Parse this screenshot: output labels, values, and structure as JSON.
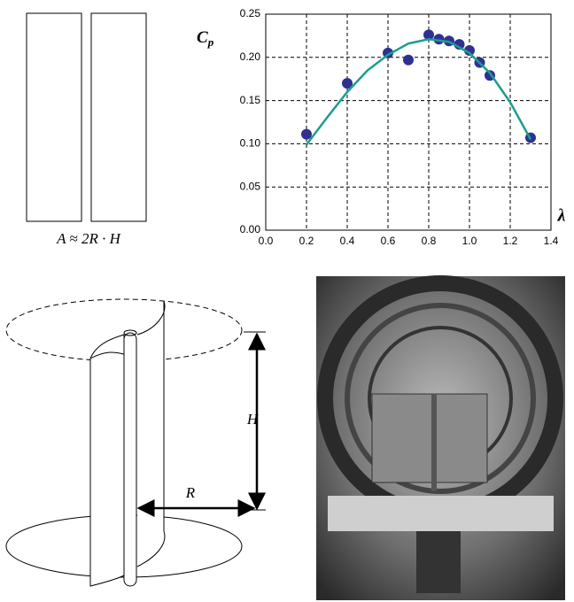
{
  "chart_data": {
    "type": "scatter",
    "y_label": "C",
    "y_label_sub": "p",
    "x_label": "λ",
    "xlim": [
      0,
      1.4
    ],
    "xticks": [
      {
        "value": 0,
        "label": "0.0"
      },
      0.2,
      0.4,
      0.6,
      0.8,
      {
        "value": 1,
        "label": "1.0"
      },
      1.2,
      1.4
    ],
    "ylim": [
      0,
      0.25
    ],
    "yticks": [
      {
        "value": 0,
        "label": "0.00"
      },
      0.05,
      {
        "value": 0.1,
        "label": "0.10"
      },
      0.15,
      {
        "value": 0.2,
        "label": "0.20"
      },
      0.25
    ],
    "grid": true,
    "series": [
      {
        "type": "scatter",
        "color": "#2e3192",
        "x": [
          0.2,
          0.4,
          0.6,
          0.7,
          0.8,
          0.85,
          0.9,
          0.95,
          1.0,
          1.05,
          1.1,
          1.3
        ],
        "values": [
          0.111,
          0.17,
          0.205,
          0.197,
          0.226,
          0.221,
          0.219,
          0.215,
          0.208,
          0.194,
          0.179,
          0.107
        ]
      },
      {
        "type": "line",
        "color": "#1a9e8f",
        "x": [
          0.2,
          0.3,
          0.4,
          0.5,
          0.6,
          0.7,
          0.8,
          0.9,
          1.0,
          1.1,
          1.2,
          1.3
        ],
        "values": [
          0.099,
          0.13,
          0.16,
          0.185,
          0.203,
          0.216,
          0.221,
          0.218,
          0.205,
          0.182,
          0.148,
          0.105
        ]
      }
    ]
  },
  "diagram": {
    "area_formula": "A ≈ 2R · H",
    "height_label": "H",
    "radius_label": "R"
  }
}
